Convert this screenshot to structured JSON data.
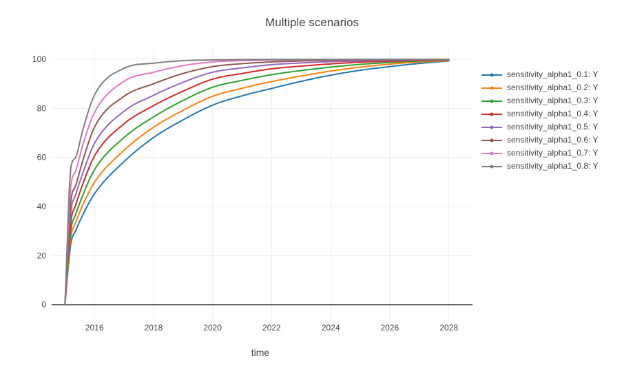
{
  "figure": {
    "title": "Multiple scenarios",
    "x_axis_label": "time"
  },
  "chart_data": {
    "type": "line",
    "title": "Multiple scenarios",
    "xlabel": "time",
    "ylabel": "",
    "x_tick_values": [
      2016,
      2018,
      2020,
      2022,
      2024,
      2026,
      2028
    ],
    "y_tick_values": [
      0,
      20,
      40,
      60,
      80,
      100
    ],
    "xlim": [
      2014.55,
      2028.8
    ],
    "ylim": [
      -5.7,
      104.5
    ],
    "grid": true,
    "legend_position": "right",
    "background_color": "#ffffff",
    "grid_color": "#ececec",
    "zeroline_color": "#444444",
    "text_color": "#444444",
    "x": [
      2015,
      2015.2,
      2015.35,
      2015.6,
      2016,
      2017,
      2018,
      2019,
      2020,
      2021,
      2022,
      2023,
      2024,
      2025,
      2026,
      2027,
      2028
    ],
    "series": [
      {
        "name": "sensitivity_alpha1_0.1: Y",
        "color": "#1f77b4",
        "values": [
          0,
          25.0,
          29.8,
          36.5,
          45.2,
          58.3,
          68.1,
          75.3,
          81.3,
          85.1,
          88.1,
          91.0,
          93.5,
          95.5,
          97.0,
          98.3,
          99.3
        ]
      },
      {
        "name": "sensitivity_alpha1_0.2: Y",
        "color": "#ff7f0e",
        "values": [
          0,
          27.5,
          33.1,
          40.5,
          49.9,
          62.9,
          72.3,
          79.2,
          84.9,
          88.2,
          90.9,
          93.2,
          95.2,
          96.8,
          98.0,
          98.9,
          99.4
        ]
      },
      {
        "name": "sensitivity_alpha1_0.3: Y",
        "color": "#2ca02c",
        "values": [
          0,
          30.5,
          36.3,
          44.5,
          55.0,
          68.1,
          76.5,
          83.2,
          88.6,
          91.4,
          93.7,
          95.4,
          96.8,
          97.9,
          98.7,
          99.3,
          99.6
        ]
      },
      {
        "name": "sensitivity_alpha1_0.4: Y",
        "color": "#d62728",
        "values": [
          0,
          34.0,
          40.1,
          49.0,
          60.6,
          73.7,
          81.1,
          87.0,
          91.9,
          94.2,
          96.1,
          97.2,
          98.1,
          98.8,
          99.2,
          99.5,
          99.7
        ]
      },
      {
        "name": "sensitivity_alpha1_0.5: Y",
        "color": "#9467bd",
        "values": [
          0,
          38.0,
          44.3,
          53.5,
          65.7,
          78.8,
          85.3,
          90.6,
          94.7,
          96.5,
          97.8,
          98.5,
          99.0,
          99.3,
          99.5,
          99.7,
          99.8
        ]
      },
      {
        "name": "sensitivity_alpha1_0.6: Y",
        "color": "#8c564b",
        "values": [
          0,
          42.5,
          48.0,
          58.5,
          72.3,
          84.9,
          90.0,
          94.2,
          97.0,
          98.2,
          98.9,
          99.3,
          99.5,
          99.6,
          99.7,
          99.8,
          99.85
        ]
      },
      {
        "name": "sensitivity_alpha1_0.7: Y",
        "color": "#e377c2",
        "values": [
          0,
          48.5,
          54.1,
          65.0,
          78.3,
          91.0,
          94.7,
          97.4,
          98.9,
          99.4,
          99.6,
          99.75,
          99.8,
          99.85,
          99.9,
          99.9,
          99.9
        ]
      },
      {
        "name": "sensitivity_alpha1_0.8: Y",
        "color": "#7f7f7f",
        "values": [
          0,
          56.0,
          59.7,
          71.0,
          85.4,
          96.3,
          98.4,
          99.4,
          99.7,
          99.85,
          99.9,
          99.9,
          99.92,
          99.94,
          99.95,
          99.95,
          99.95
        ]
      }
    ]
  }
}
